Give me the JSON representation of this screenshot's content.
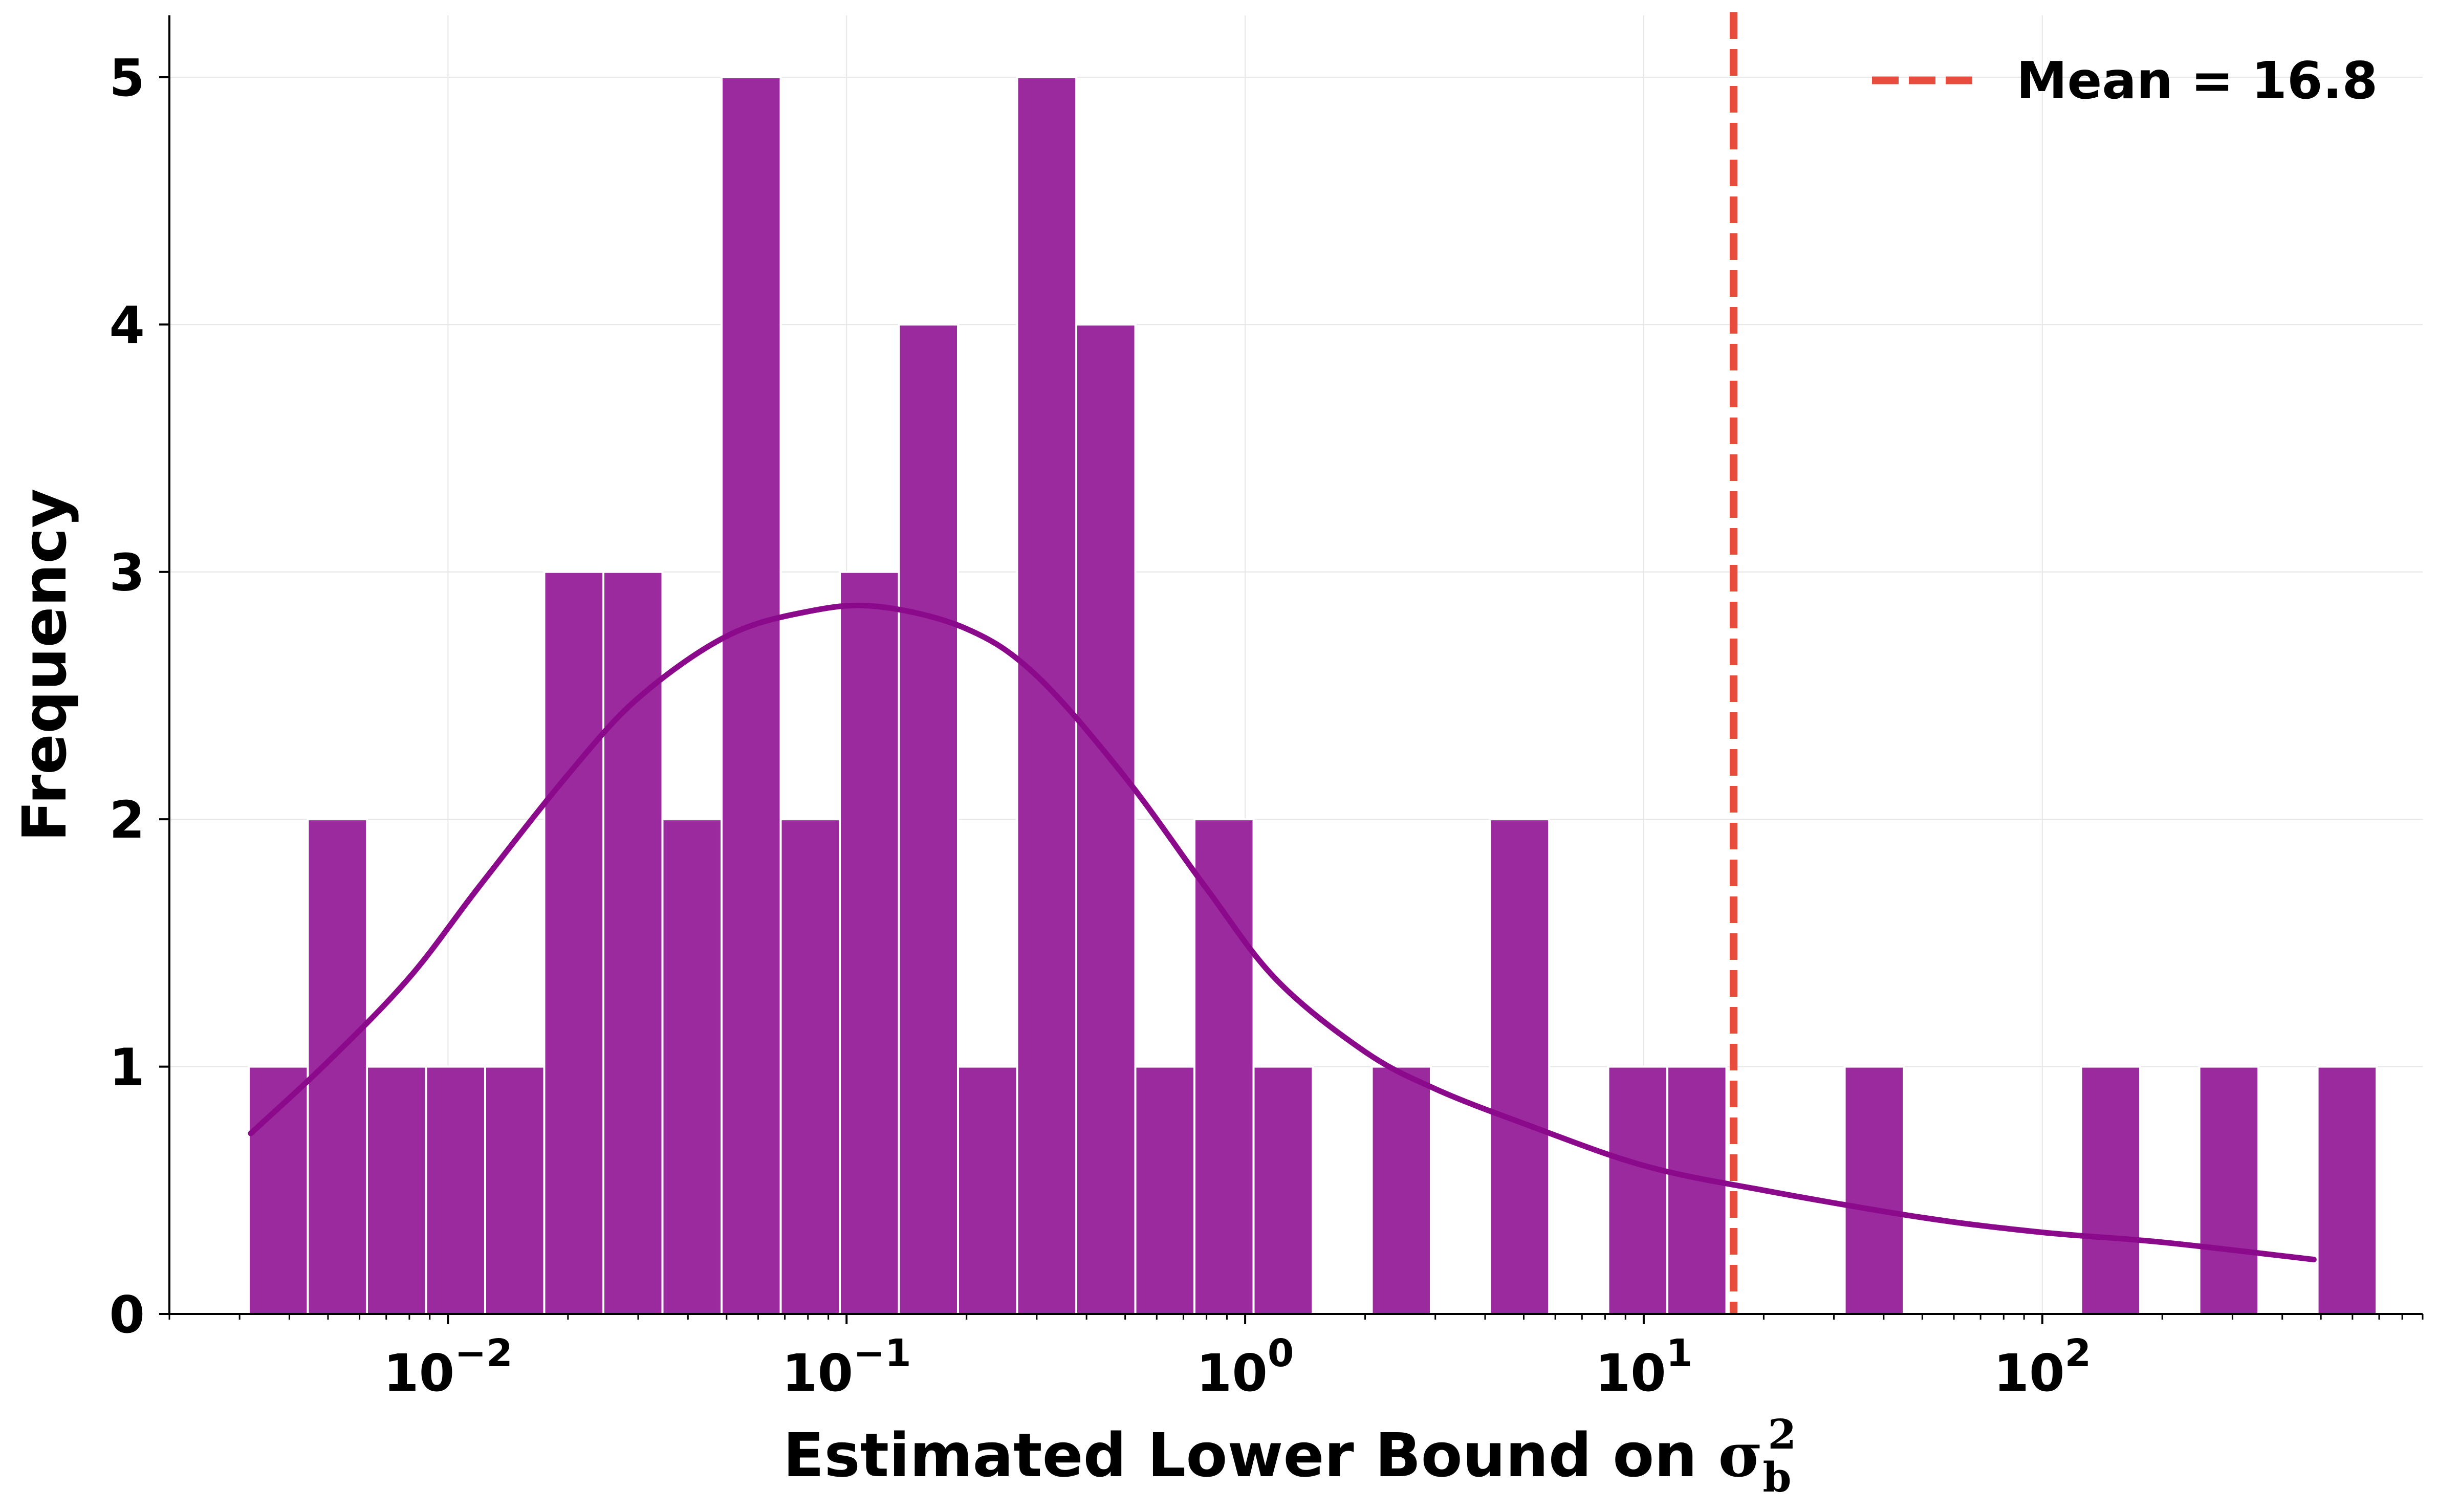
{
  "chart_data": {
    "type": "bar",
    "xscale": "log",
    "xlabel_prefix": "Estimated Lower Bound on ",
    "xlabel_symbol": "σ",
    "xlabel_sub": "b",
    "xlabel_sup": "2",
    "ylabel": "Frequency",
    "xlim": [
      0.002,
      900
    ],
    "ylim": [
      0,
      5.25
    ],
    "grid": true,
    "legend_position": "top-right",
    "bar_color": "#9b2a9e",
    "curve_color": "#8b0a8c",
    "mean_line_color": "#e74c3c",
    "x_ticks": [
      {
        "value": 0.01,
        "base": "10",
        "exp": "−2"
      },
      {
        "value": 0.1,
        "base": "10",
        "exp": "−1"
      },
      {
        "value": 1,
        "base": "10",
        "exp": "0"
      },
      {
        "value": 10,
        "base": "10",
        "exp": "1"
      },
      {
        "value": 100,
        "base": "10",
        "exp": "2"
      }
    ],
    "y_ticks": [
      "0",
      "1",
      "2",
      "3",
      "4",
      "5"
    ],
    "bins": {
      "log10_start": -2.5,
      "log10_width": 0.1483,
      "counts": [
        1,
        2,
        1,
        1,
        1,
        3,
        3,
        2,
        5,
        2,
        3,
        4,
        1,
        5,
        4,
        1,
        2,
        1,
        0,
        1,
        0,
        2,
        0,
        1,
        1,
        0,
        0,
        1,
        0,
        0,
        0,
        1,
        0,
        1,
        0,
        1
      ]
    },
    "density_curve": {
      "x": [
        0.0032,
        0.005,
        0.008,
        0.012,
        0.02,
        0.03,
        0.05,
        0.08,
        0.12,
        0.2,
        0.3,
        0.5,
        0.8,
        1.2,
        2,
        3,
        5,
        10,
        20,
        50,
        100,
        200,
        480
      ],
      "y": [
        0.73,
        1.02,
        1.36,
        1.73,
        2.18,
        2.49,
        2.74,
        2.84,
        2.86,
        2.77,
        2.58,
        2.17,
        1.72,
        1.35,
        1.06,
        0.91,
        0.77,
        0.6,
        0.5,
        0.39,
        0.33,
        0.29,
        0.22
      ]
    },
    "mean_line": {
      "value": 16.8,
      "label": "Mean = 16.8"
    }
  }
}
